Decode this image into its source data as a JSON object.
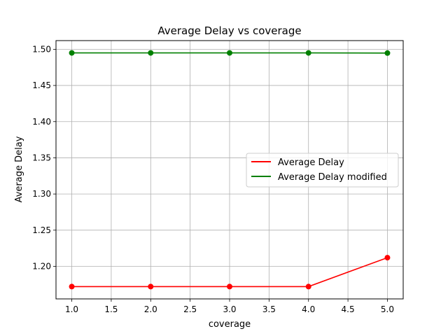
{
  "chart_data": {
    "type": "line",
    "title": "Average Delay vs coverage",
    "xlabel": "coverage",
    "ylabel": "Average Delay",
    "x": [
      1.0,
      2.0,
      3.0,
      4.0,
      5.0
    ],
    "xlim": [
      0.8,
      5.2
    ],
    "ylim": [
      1.155,
      1.512
    ],
    "xticks": [
      1.0,
      1.5,
      2.0,
      2.5,
      3.0,
      3.5,
      4.0,
      4.5,
      5.0
    ],
    "xtick_labels": [
      "1.0",
      "1.5",
      "2.0",
      "2.5",
      "3.0",
      "3.5",
      "4.0",
      "4.5",
      "5.0"
    ],
    "yticks": [
      1.2,
      1.25,
      1.3,
      1.35,
      1.4,
      1.45,
      1.5
    ],
    "ytick_labels": [
      "1.20",
      "1.25",
      "1.30",
      "1.35",
      "1.40",
      "1.45",
      "1.50"
    ],
    "grid": true,
    "legend_position": "center-right",
    "series": [
      {
        "name": "Average Delay",
        "color": "#ff0000",
        "values": [
          1.172,
          1.172,
          1.172,
          1.172,
          1.212
        ]
      },
      {
        "name": "Average Delay modified",
        "color": "#008000",
        "values": [
          1.495,
          1.495,
          1.495,
          1.495,
          1.4948
        ]
      }
    ]
  }
}
